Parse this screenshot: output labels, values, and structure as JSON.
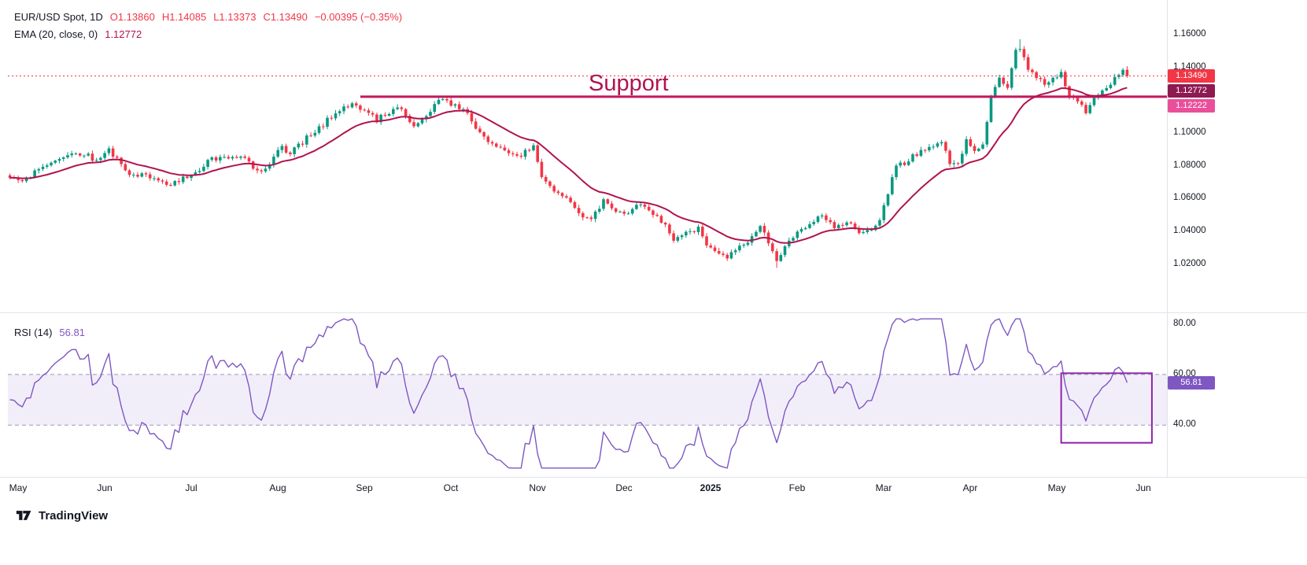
{
  "header": {
    "symbol": "EUR/USD Spot, 1D",
    "open": "O1.13860",
    "high": "H1.14085",
    "low": "L1.13373",
    "close": "C1.13490",
    "change": "−0.00395 (−0.35%)"
  },
  "ema": {
    "label": "EMA (20, close, 0)",
    "value": "1.12772"
  },
  "rsi": {
    "label": "RSI (14)",
    "value": "56.81"
  },
  "annotation": {
    "text": "Support"
  },
  "watermark": {
    "text": "TradingView"
  },
  "badges": {
    "last_price": {
      "text": "1.13490",
      "bg": "#f23645"
    },
    "ema_price": {
      "text": "1.12772",
      "bg": "#8e1a52"
    },
    "support_price": {
      "text": "1.12222",
      "bg": "#ea4f9b"
    },
    "rsi_value": {
      "text": "56.81",
      "bg": "#7e57c2"
    }
  },
  "axes": {
    "price_ticks": [
      {
        "label": "1.16000",
        "v": 1.16
      },
      {
        "label": "1.14000",
        "v": 1.14
      },
      {
        "label": "1.10000",
        "v": 1.1
      },
      {
        "label": "1.08000",
        "v": 1.08
      },
      {
        "label": "1.06000",
        "v": 1.06
      },
      {
        "label": "1.04000",
        "v": 1.04
      },
      {
        "label": "1.02000",
        "v": 1.02
      }
    ],
    "rsi_ticks": [
      {
        "label": "80.00",
        "v": 80
      },
      {
        "label": "60.00",
        "v": 60
      },
      {
        "label": "40.00",
        "v": 40
      }
    ],
    "months": [
      {
        "label": "May",
        "i": 2
      },
      {
        "label": "Jun",
        "i": 23
      },
      {
        "label": "Jul",
        "i": 44
      },
      {
        "label": "Aug",
        "i": 65
      },
      {
        "label": "Sep",
        "i": 86
      },
      {
        "label": "Oct",
        "i": 107
      },
      {
        "label": "Nov",
        "i": 128
      },
      {
        "label": "Dec",
        "i": 149
      },
      {
        "label": "2025",
        "i": 170,
        "bold": true
      },
      {
        "label": "Feb",
        "i": 191
      },
      {
        "label": "Mar",
        "i": 212
      },
      {
        "label": "Apr",
        "i": 233
      },
      {
        "label": "May",
        "i": 254
      },
      {
        "label": "Jun",
        "i": 275
      }
    ]
  },
  "chart_data": [
    {
      "type": "candlestick",
      "title": "EUR/USD Spot, 1D",
      "ohlc_last": {
        "open": 1.1386,
        "high": 1.14085,
        "low": 1.13373,
        "close": 1.1349,
        "change": -0.00395,
        "change_pct": -0.35
      },
      "ema": {
        "period": 20,
        "source": "close",
        "offset": 0,
        "last": 1.12772
      },
      "support_line": {
        "label": "Support",
        "level": 1.12222,
        "start_index": 85
      },
      "num_candles": 272,
      "close_anchors": [
        [
          0,
          1.0715
        ],
        [
          3,
          1.0695
        ],
        [
          6,
          1.077
        ],
        [
          10,
          1.082
        ],
        [
          14,
          1.086
        ],
        [
          18,
          1.0865
        ],
        [
          21,
          1.0845
        ],
        [
          24,
          1.089
        ],
        [
          27,
          1.0805
        ],
        [
          30,
          1.074
        ],
        [
          33,
          1.0735
        ],
        [
          36,
          1.0715
        ],
        [
          39,
          1.069
        ],
        [
          42,
          1.0715
        ],
        [
          45,
          1.077
        ],
        [
          48,
          1.082
        ],
        [
          51,
          1.0845
        ],
        [
          54,
          1.086
        ],
        [
          57,
          1.0825
        ],
        [
          60,
          1.079
        ],
        [
          62,
          1.078
        ],
        [
          64,
          1.086
        ],
        [
          66,
          1.091
        ],
        [
          68,
          1.0895
        ],
        [
          71,
          1.0935
        ],
        [
          74,
          1.101
        ],
        [
          77,
          1.1085
        ],
        [
          80,
          1.113
        ],
        [
          83,
          1.1185
        ],
        [
          85,
          1.1165
        ],
        [
          87,
          1.1105
        ],
        [
          89,
          1.1075
        ],
        [
          91,
          1.113
        ],
        [
          94,
          1.1165
        ],
        [
          96,
          1.111
        ],
        [
          98,
          1.1035
        ],
        [
          100,
          1.108
        ],
        [
          102,
          1.1135
        ],
        [
          104,
          1.1185
        ],
        [
          106,
          1.1205
        ],
        [
          108,
          1.117
        ],
        [
          110,
          1.1135
        ],
        [
          113,
          1.1035
        ],
        [
          116,
          1.0955
        ],
        [
          119,
          1.0905
        ],
        [
          122,
          1.0865
        ],
        [
          125,
          1.0885
        ],
        [
          127,
          1.0925
        ],
        [
          129,
          1.073
        ],
        [
          132,
          1.066
        ],
        [
          135,
          1.059
        ],
        [
          138,
          1.0525
        ],
        [
          141,
          1.0475
        ],
        [
          144,
          1.0575
        ],
        [
          147,
          1.0535
        ],
        [
          150,
          1.051
        ],
        [
          153,
          1.0575
        ],
        [
          156,
          1.0505
        ],
        [
          159,
          1.043
        ],
        [
          161,
          1.0355
        ],
        [
          164,
          1.039
        ],
        [
          167,
          1.0405
        ],
        [
          169,
          1.033
        ],
        [
          172,
          1.0255
        ],
        [
          174,
          1.0225
        ],
        [
          176,
          1.0285
        ],
        [
          179,
          1.0345
        ],
        [
          182,
          1.0415
        ],
        [
          184,
          1.0335
        ],
        [
          186,
          1.0225
        ],
        [
          188,
          1.0325
        ],
        [
          191,
          1.0385
        ],
        [
          194,
          1.0455
        ],
        [
          197,
          1.049
        ],
        [
          200,
          1.042
        ],
        [
          203,
          1.046
        ],
        [
          206,
          1.0395
        ],
        [
          209,
          1.0415
        ],
        [
          211,
          1.0485
        ],
        [
          213,
          1.0625
        ],
        [
          215,
          1.079
        ],
        [
          218,
          1.085
        ],
        [
          221,
          1.088
        ],
        [
          224,
          1.0925
        ],
        [
          226,
          1.0945
        ],
        [
          228,
          1.0815
        ],
        [
          230,
          1.0795
        ],
        [
          232,
          1.0955
        ],
        [
          234,
          1.0905
        ],
        [
          236,
          1.093
        ],
        [
          238,
          1.12
        ],
        [
          240,
          1.1355
        ],
        [
          242,
          1.1285
        ],
        [
          244,
          1.1505
        ],
        [
          245,
          1.151
        ],
        [
          247,
          1.1385
        ],
        [
          249,
          1.1345
        ],
        [
          251,
          1.1305
        ],
        [
          253,
          1.132
        ],
        [
          255,
          1.1365
        ],
        [
          257,
          1.1245
        ],
        [
          259,
          1.1185
        ],
        [
          261,
          1.1125
        ],
        [
          263,
          1.1215
        ],
        [
          265,
          1.1275
        ],
        [
          267,
          1.1285
        ],
        [
          269,
          1.1355
        ],
        [
          270,
          1.1386
        ],
        [
          271,
          1.1349
        ]
      ],
      "extreme_high": [
        245,
        1.1573
      ],
      "extreme_low": [
        186,
        1.0178
      ],
      "ylim": [
        1.01,
        1.17
      ],
      "x_axis_months": [
        "May",
        "Jun",
        "Jul",
        "Aug",
        "Sep",
        "Oct",
        "Nov",
        "Dec",
        "2025",
        "Feb",
        "Mar",
        "Apr",
        "May",
        "Jun"
      ],
      "colors": {
        "up": "#089981",
        "down": "#f23645",
        "ema": "#b1134f",
        "support": "#c2185b",
        "last_price_line": "#f23645"
      }
    },
    {
      "type": "line",
      "title": "RSI (14)",
      "period": 14,
      "last_value": 56.81,
      "band": {
        "upper": 60,
        "lower": 40
      },
      "ylim": [
        22,
        83
      ],
      "color": "#7e57c2",
      "band_fill": "rgba(126,87,194,0.10)",
      "dashed_color": "#9b9bb0",
      "highlight_rect": {
        "x_start_index": 255,
        "x_end_index": 277,
        "rsi_top": 60.5,
        "rsi_bottom": 33,
        "stroke": "#8e24aa"
      }
    }
  ]
}
